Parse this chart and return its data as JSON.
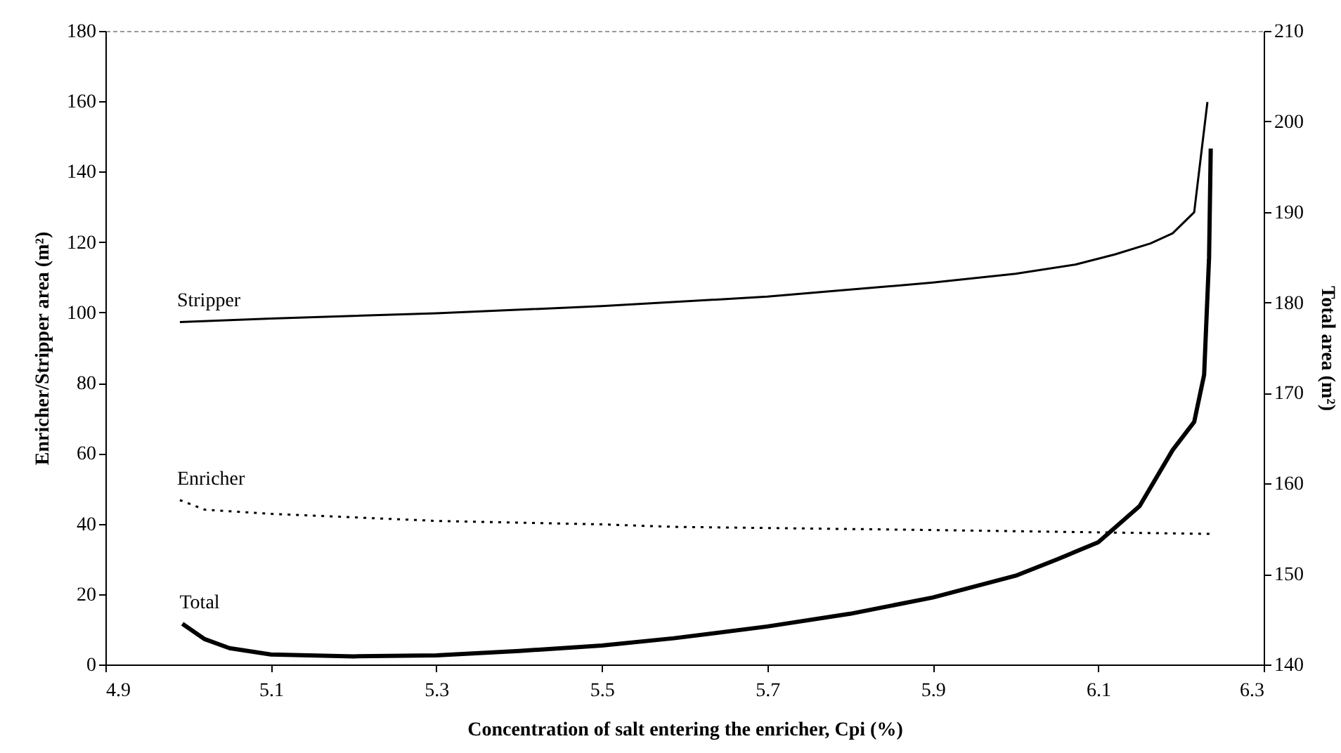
{
  "chart_data": {
    "type": "line",
    "xlabel": "Concentration of salt entering the enricher, Cpi (%)",
    "ylabel": "Enricher/Stripper area (m²)",
    "y2label": "Total area (m²)",
    "xlim": [
      4.9,
      6.3
    ],
    "xticks": [
      4.9,
      5.1,
      5.3,
      5.5,
      5.7,
      5.9,
      6.1,
      6.3
    ],
    "ylim": [
      0,
      180
    ],
    "yticks": [
      0,
      20,
      40,
      60,
      80,
      100,
      120,
      140,
      160,
      180
    ],
    "y2lim": [
      140,
      210
    ],
    "y2ticks": [
      140,
      150,
      160,
      170,
      180,
      190,
      200,
      210
    ],
    "grid": false,
    "legend": false,
    "marker": "none",
    "series": [
      {
        "name": "Stripper",
        "color": "#000000",
        "line_style": "solid",
        "x": [
          4.99,
          5.1,
          5.3,
          5.5,
          5.7,
          5.79,
          5.9,
          6.0,
          6.072,
          6.12,
          6.163,
          6.19,
          6.216,
          6.232
        ],
        "values": [
          97.3,
          98.3,
          99.8,
          101.8,
          104.5,
          106.3,
          108.5,
          111,
          113.6,
          116.5,
          119.6,
          122.5,
          128.5,
          159.8
        ]
      },
      {
        "name": "Enricher",
        "color": "#000000",
        "line_style": "dotted",
        "x": [
          4.99,
          5.02,
          5.1,
          5.3,
          5.5,
          5.587,
          5.9,
          6.235
        ],
        "values": [
          46.7,
          44,
          42.8,
          40.8,
          39.8,
          39.1,
          38.2,
          37.1
        ]
      },
      {
        "name": "Total",
        "color": "#000000",
        "line_style": "solid",
        "axis": "y2",
        "x": [
          4.993,
          5.02,
          5.05,
          5.1,
          5.2,
          5.3,
          5.4,
          5.5,
          5.587,
          5.7,
          5.8,
          5.9,
          6.0,
          6.05,
          6.1,
          6.15,
          6.19,
          6.216,
          6.228,
          6.234,
          6.236
        ],
        "values": [
          144.5,
          142.8,
          141.8,
          141.1,
          140.9,
          141.0,
          141.5,
          142.1,
          142.9,
          144.2,
          145.6,
          147.4,
          149.8,
          151.6,
          153.5,
          157.5,
          163.7,
          166.8,
          172,
          185,
          197
        ]
      }
    ]
  }
}
